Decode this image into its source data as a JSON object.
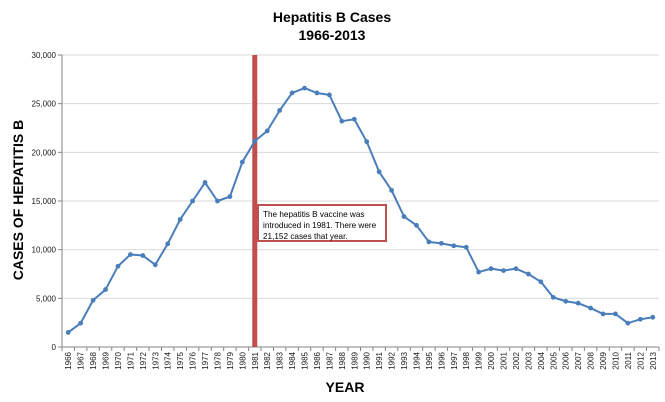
{
  "chart_data": {
    "type": "line",
    "title": [
      "Hepatitis B Cases",
      "1966-2013"
    ],
    "xlabel": "YEAR",
    "ylabel": "CASES OF HEPATITIS B",
    "ylim": [
      0,
      30000
    ],
    "yticks": [
      0,
      5000,
      10000,
      15000,
      20000,
      25000,
      30000
    ],
    "ytick_labels": [
      "0",
      "5,000",
      "10,000",
      "15,000",
      "20,000",
      "25,000",
      "30,000"
    ],
    "grid": "horizontal",
    "categories": [
      "1966",
      "1967",
      "1968",
      "1969",
      "1970",
      "1971",
      "1972",
      "1973",
      "1974",
      "1975",
      "1976",
      "1977",
      "1978",
      "1979",
      "1980",
      "1981",
      "1982",
      "1983",
      "1984",
      "1985",
      "1986",
      "1987",
      "1988",
      "1989",
      "1990",
      "1991",
      "1992",
      "1993",
      "1994",
      "1995",
      "1996",
      "1997",
      "1998",
      "1999",
      "2000",
      "2001",
      "2002",
      "2003",
      "2004",
      "2005",
      "2006",
      "2007",
      "2008",
      "2009",
      "2010",
      "2011",
      "2012",
      "2013"
    ],
    "series": [
      {
        "values": [
          1500,
          2450,
          4800,
          5900,
          8300,
          9500,
          9400,
          8450,
          10600,
          13100,
          15000,
          16900,
          15000,
          15450,
          19000,
          21152,
          22200,
          24300,
          26100,
          26600,
          26100,
          25900,
          23200,
          23400,
          21100,
          18000,
          16100,
          13400,
          12500,
          10800,
          10650,
          10400,
          10250,
          7700,
          8050,
          7850,
          8050,
          7500,
          6700,
          5100,
          4700,
          4500,
          4000,
          3400,
          3400,
          2450,
          2850,
          3050
        ],
        "color": "#4a7ebb"
      }
    ],
    "vertical_marker": {
      "x": "1981",
      "color": "#c0504d"
    },
    "annotation": {
      "lines": [
        "The hepatitis B vaccine was",
        "introduced in 1981. There were",
        "21,152 cases that year."
      ],
      "border_color": "#c0504d"
    }
  }
}
